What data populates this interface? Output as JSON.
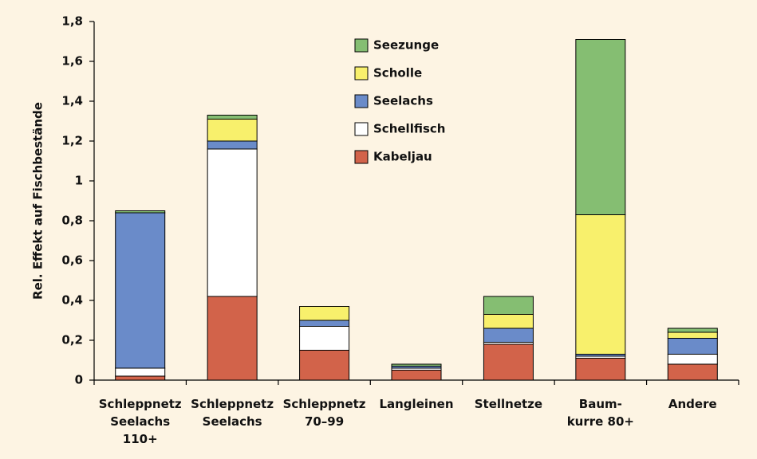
{
  "chart_data": {
    "type": "stacked_bar",
    "y_label": "Rel. Effekt auf Fischbestände",
    "categories": [
      "Schleppnetz\nSeelachs\n110+",
      "Schleppnetz\nSeelachs",
      "Schleppnetz\n70–99",
      "Langleinen",
      "Stellnetze",
      "Baum-\nkurre 80+",
      "Andere"
    ],
    "series": [
      {
        "name": "Kabeljau",
        "color": "#d2634a",
        "values": [
          0.02,
          0.42,
          0.15,
          0.05,
          0.18,
          0.11,
          0.08
        ]
      },
      {
        "name": "Schellfisch",
        "color": "#ffffff",
        "values": [
          0.04,
          0.74,
          0.12,
          0.01,
          0.01,
          0.01,
          0.05
        ]
      },
      {
        "name": "Seelachs",
        "color": "#6a8bc9",
        "values": [
          0.78,
          0.04,
          0.03,
          0.01,
          0.07,
          0.01,
          0.08
        ]
      },
      {
        "name": "Scholle",
        "color": "#f8f06c",
        "values": [
          0,
          0.11,
          0.07,
          0,
          0.07,
          0.7,
          0.03
        ]
      },
      {
        "name": "Seezunge",
        "color": "#85be72",
        "values": [
          0.01,
          0.02,
          0,
          0.01,
          0.09,
          0.88,
          0.02
        ]
      }
    ],
    "ylim": [
      0,
      1.8
    ],
    "yticks": [
      0,
      {
        "value": 0.2,
        "label": "0,2"
      },
      {
        "value": 0.4,
        "label": "0,4"
      },
      {
        "value": 0.6,
        "label": "0,6"
      },
      {
        "value": 0.8,
        "label": "0,8"
      },
      1,
      {
        "value": 1.2,
        "label": "1,2"
      },
      {
        "value": 1.4,
        "label": "1,4"
      },
      {
        "value": 1.6,
        "label": "1,6"
      },
      {
        "value": 1.8,
        "label": "1,8"
      }
    ],
    "legend": "top-center"
  }
}
